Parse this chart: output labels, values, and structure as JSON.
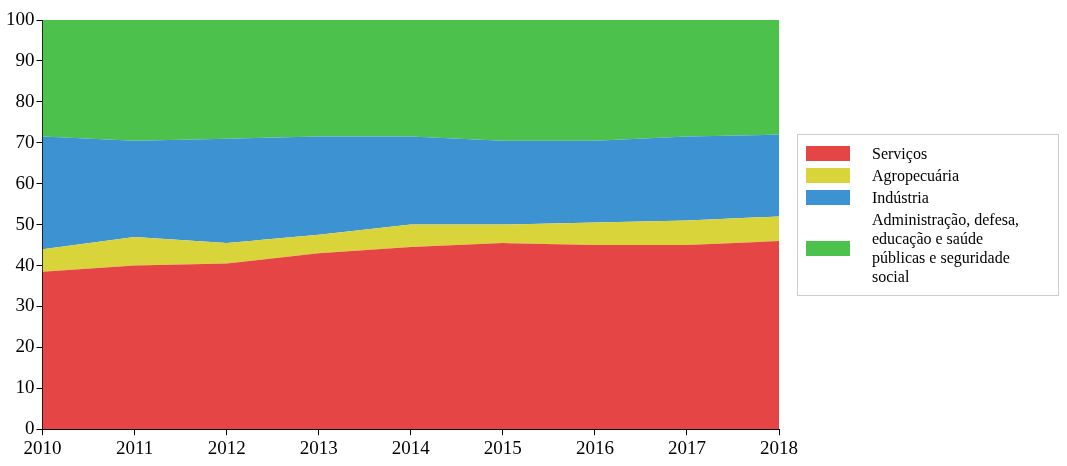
{
  "chart_data": {
    "type": "area",
    "stacked": true,
    "x": [
      2010,
      2011,
      2012,
      2013,
      2014,
      2015,
      2016,
      2017,
      2018
    ],
    "xlim": [
      2010,
      2018
    ],
    "xticks": [
      2010,
      2011,
      2012,
      2013,
      2014,
      2015,
      2016,
      2017,
      2018
    ],
    "ylim": [
      0,
      100
    ],
    "yticks": [
      0,
      10,
      20,
      30,
      40,
      50,
      60,
      70,
      80,
      90,
      100
    ],
    "grid": false,
    "legend": "right",
    "series": [
      {
        "name": "Serviços",
        "color": "#e64545",
        "values": [
          38.5,
          40,
          40.5,
          43,
          44.5,
          45.5,
          45,
          45,
          46
        ]
      },
      {
        "name": "Agropecuária",
        "color": "#d9d43a",
        "values": [
          5.5,
          7,
          5,
          4.5,
          5.5,
          4.5,
          5.5,
          6,
          6
        ]
      },
      {
        "name": "Indústria",
        "color": "#3d93d1",
        "values": [
          27.5,
          23.5,
          25.5,
          24,
          21.5,
          20.5,
          20,
          20.5,
          20
        ]
      },
      {
        "name": "Administração, defesa, educação e saúde públicas e seguridade social",
        "color": "#4cc24c",
        "values": [
          28.5,
          29.5,
          29,
          28.5,
          28.5,
          29.5,
          29.5,
          28.5,
          28
        ]
      }
    ]
  }
}
